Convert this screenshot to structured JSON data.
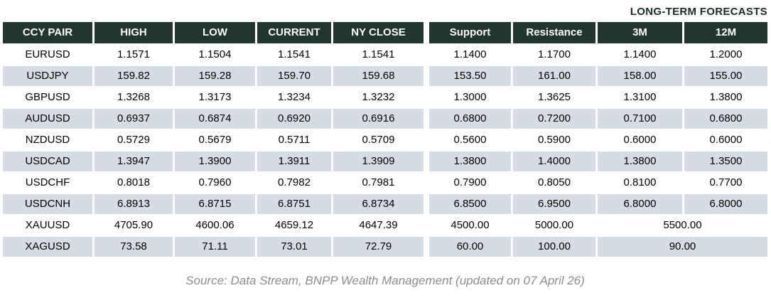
{
  "colors": {
    "header_bg": "#213631",
    "header_text": "#ffffff",
    "stripe_bg": "#d6dce4",
    "body_text": "#000000",
    "title_text": "#1b2b28",
    "source_text": "#8c8c8c"
  },
  "chart_data": {
    "type": "table",
    "title": "LONG-TERM FORECASTS",
    "columns": [
      "CCY PAIR",
      "HIGH",
      "LOW",
      "CURRENT",
      "NY CLOSE",
      "Support",
      "Resistance",
      "3M",
      "12M"
    ],
    "rows": [
      {
        "cells": [
          "EURUSD",
          "1.1571",
          "1.1504",
          "1.1541",
          "1.1541",
          "1.1400",
          "1.1700",
          "1.1400",
          "1.2000"
        ]
      },
      {
        "cells": [
          "USDJPY",
          "159.82",
          "159.28",
          "159.70",
          "159.68",
          "153.50",
          "161.00",
          "158.00",
          "155.00"
        ]
      },
      {
        "cells": [
          "GBPUSD",
          "1.3268",
          "1.3173",
          "1.3234",
          "1.3232",
          "1.3000",
          "1.3625",
          "1.3100",
          "1.3800"
        ]
      },
      {
        "cells": [
          "AUDUSD",
          "0.6937",
          "0.6874",
          "0.6920",
          "0.6916",
          "0.6800",
          "0.7200",
          "0.7100",
          "0.6800"
        ]
      },
      {
        "cells": [
          "NZDUSD",
          "0.5729",
          "0.5679",
          "0.5711",
          "0.5709",
          "0.5600",
          "0.5900",
          "0.6000",
          "0.6000"
        ]
      },
      {
        "cells": [
          "USDCAD",
          "1.3947",
          "1.3900",
          "1.3911",
          "1.3909",
          "1.3800",
          "1.4000",
          "1.3800",
          "1.3500"
        ]
      },
      {
        "cells": [
          "USDCHF",
          "0.8018",
          "0.7960",
          "0.7982",
          "0.7981",
          "0.7900",
          "0.8050",
          "0.8100",
          "0.7700"
        ]
      },
      {
        "cells": [
          "USDCNH",
          "6.8913",
          "6.8715",
          "6.8751",
          "6.8734",
          "6.8500",
          "6.9500",
          "6.8000",
          "6.8000"
        ]
      },
      {
        "cells": [
          "XAUUSD",
          "4705.90",
          "4600.06",
          "4659.12",
          "4647.39",
          "4500.00",
          "5000.00"
        ],
        "merged_forecast": "5500.00"
      },
      {
        "cells": [
          "XAGUSD",
          "73.58",
          "71.11",
          "73.01",
          "72.79",
          "60.00",
          "100.00"
        ],
        "merged_forecast": "90.00"
      }
    ],
    "source": "Source: Data Stream, BNPP Wealth Management (updated on 07 April 26)",
    "layout": {
      "legend_position": "none",
      "grid": "off",
      "striped_rows": "even rows shaded (USDJPY, AUDUSD, USDCAD, USDCNH, XAGUSD)",
      "long_term_group_columns": [
        "3M",
        "12M"
      ],
      "merged_note": "3M and 12M cells merged into one forecast cell for XAUUSD and XAGUSD"
    }
  }
}
